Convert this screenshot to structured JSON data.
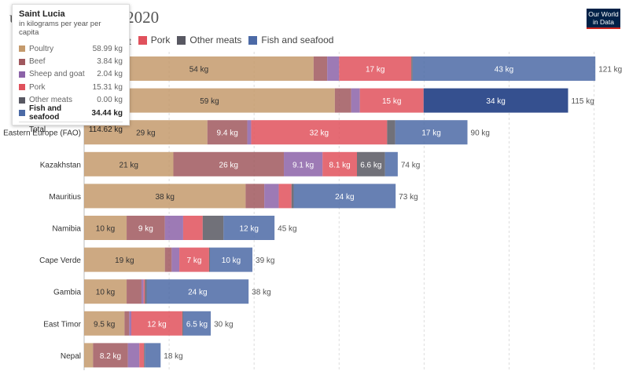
{
  "title": "Per capita meat consumption by type, 2020",
  "title_visible": "umption by type, 2020",
  "logo": [
    "Our World",
    "in Data"
  ],
  "legend_visible": [
    {
      "label": "oat",
      "color": "#c49a6c",
      "partial": true
    },
    {
      "label": "Pork",
      "color": "#e0515c"
    },
    {
      "label": "Other meats",
      "color": "#585862"
    },
    {
      "label": "Fish and seafood",
      "color": "#4c6aa6"
    }
  ],
  "tooltip": {
    "title": "Saint Lucia",
    "subtitle": "in kilograms per year per capita",
    "rows": [
      {
        "name": "Poultry",
        "value": "58.99 kg",
        "color": "#c49a6c"
      },
      {
        "name": "Beef",
        "value": "3.84 kg",
        "color": "#a0585e"
      },
      {
        "name": "Sheep and goat",
        "value": "2.04 kg",
        "color": "#8c63a8"
      },
      {
        "name": "Pork",
        "value": "15.31 kg",
        "color": "#e0515c"
      },
      {
        "name": "Other meats",
        "value": "0.00 kg",
        "color": "#585862"
      },
      {
        "name": "Fish and seafood",
        "value": "34.44 kg",
        "color": "#4c6aa6",
        "highlight": true
      }
    ],
    "total_label": "Total",
    "total_value": "114.62 kg"
  },
  "chart_data": {
    "type": "bar",
    "orientation": "horizontal",
    "stacked": true,
    "unit": "kg",
    "series_names": [
      "Poultry",
      "Beef",
      "Sheep and goat",
      "Pork",
      "Other meats",
      "Fish and seafood"
    ],
    "colors": [
      "#c49a6c",
      "#a0585e",
      "#8c63a8",
      "#e0515c",
      "#585862",
      "#4c6aa6"
    ],
    "rows": [
      {
        "country": "",
        "values": [
          54,
          3.2,
          2.8,
          17,
          0.3,
          43
        ],
        "labels": [
          "54 kg",
          "",
          "",
          "17 kg",
          "",
          "43 kg"
        ],
        "total": "121 kg"
      },
      {
        "country": "",
        "values": [
          59,
          3.84,
          2.04,
          15,
          0,
          34
        ],
        "labels": [
          "59 kg",
          "",
          "",
          "15 kg",
          "",
          "34 kg"
        ],
        "total": "115 kg",
        "highlight": 5
      },
      {
        "country": "Eastern Europe (FAO)",
        "values": [
          29,
          9.4,
          0.9,
          32,
          1.9,
          17
        ],
        "labels": [
          "29 kg",
          "9.4 kg",
          "",
          "32 kg",
          "",
          "17 kg"
        ],
        "total": "90 kg"
      },
      {
        "country": "Kazakhstan",
        "values": [
          21,
          26,
          9.1,
          8.1,
          6.6,
          3
        ],
        "labels": [
          "21 kg",
          "26 kg",
          "9.1 kg",
          "8.1 kg",
          "6.6 kg",
          ""
        ],
        "total": "74 kg"
      },
      {
        "country": "Mauritius",
        "values": [
          38,
          4.4,
          3.4,
          3,
          0.5,
          24
        ],
        "labels": [
          "38 kg",
          "",
          "",
          "",
          "",
          "24 kg"
        ],
        "total": "73 kg"
      },
      {
        "country": "Namibia",
        "values": [
          10,
          9,
          4.3,
          4.6,
          4.9,
          12
        ],
        "labels": [
          "10 kg",
          "9 kg",
          "",
          "",
          "",
          "12 kg"
        ],
        "total": "45 kg"
      },
      {
        "country": "Cape Verde",
        "values": [
          19,
          1.6,
          1.8,
          7,
          0.2,
          10
        ],
        "labels": [
          "19 kg",
          "",
          "",
          "7 kg",
          "",
          "10 kg"
        ],
        "total": "39 kg"
      },
      {
        "country": "Gambia",
        "values": [
          10,
          3.5,
          0.5,
          0.3,
          0.4,
          24
        ],
        "labels": [
          "10 kg",
          "",
          "",
          "",
          "",
          "24 kg"
        ],
        "total": "38 kg"
      },
      {
        "country": "East Timor",
        "values": [
          9.5,
          1.1,
          0.5,
          12,
          0.2,
          6.5
        ],
        "labels": [
          "9.5 kg",
          "",
          "",
          "12 kg",
          "",
          "6.5 kg"
        ],
        "total": "30 kg"
      },
      {
        "country": "Nepal",
        "values": [
          2.1,
          8.2,
          2.7,
          1.1,
          0.2,
          3.7
        ],
        "labels": [
          "",
          "8.2 kg",
          "",
          "",
          "",
          ""
        ],
        "total": "18 kg"
      }
    ],
    "xlim": [
      0,
      121
    ],
    "grid": true
  }
}
